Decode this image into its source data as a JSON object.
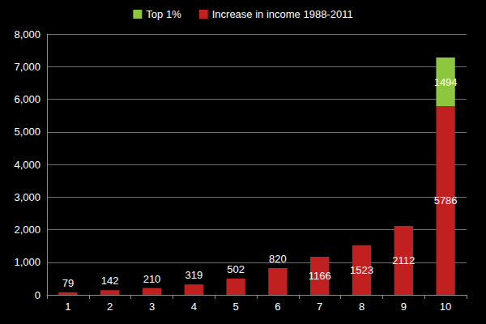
{
  "chart_data": {
    "type": "bar",
    "categories": [
      "1",
      "2",
      "3",
      "4",
      "5",
      "6",
      "7",
      "8",
      "9",
      "10"
    ],
    "series": [
      {
        "name": "Increase in income 1988-2011",
        "color": "#c0201f",
        "values": [
          79,
          142,
          210,
          319,
          502,
          820,
          1166,
          1523,
          2112,
          5786
        ]
      },
      {
        "name": "Top 1%",
        "color": "#8dc63f",
        "values": [
          null,
          null,
          null,
          null,
          null,
          null,
          null,
          null,
          null,
          1494
        ]
      }
    ],
    "stacked": true,
    "data_labels": true,
    "legend": "top",
    "ylim": [
      0,
      8000
    ],
    "yticks": [
      0,
      1000,
      2000,
      3000,
      4000,
      5000,
      6000,
      7000,
      8000
    ],
    "grid": true
  }
}
